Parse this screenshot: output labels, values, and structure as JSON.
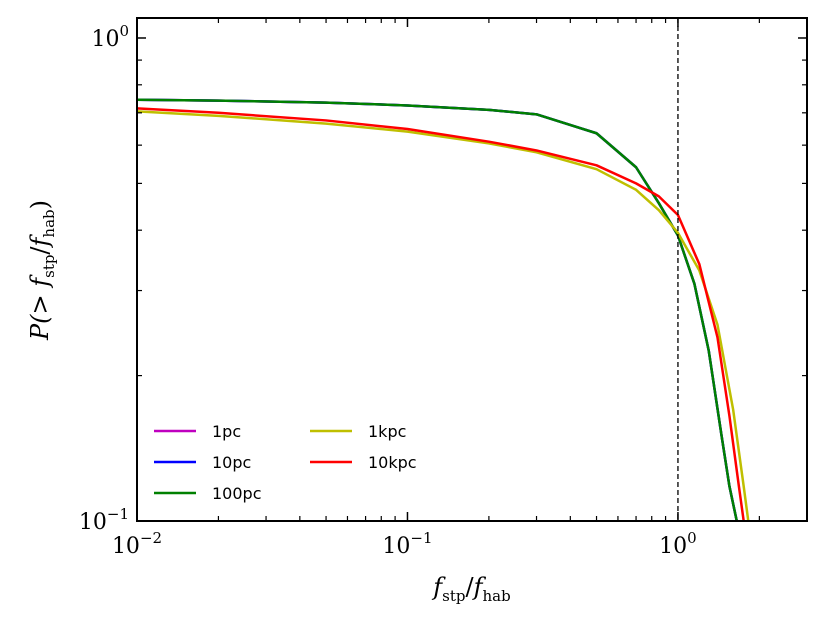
{
  "chart_data": {
    "type": "line",
    "title": "",
    "xlabel": {
      "main": "f",
      "sub": "stp",
      "sep": "/",
      "main2": "f",
      "sub2": "hab"
    },
    "ylabel": {
      "prefix": "P(> ",
      "main": "f",
      "sub": "stp",
      "sep": "/",
      "main2": "f",
      "sub2": "hab",
      "suffix": ")"
    },
    "xscale": "log",
    "yscale": "log",
    "xlim": [
      0.01,
      3.0
    ],
    "ylim": [
      0.1,
      1.1
    ],
    "xticks": [
      {
        "value": 0.01,
        "base": "10",
        "exp": "−2"
      },
      {
        "value": 0.1,
        "base": "10",
        "exp": "−1"
      },
      {
        "value": 1.0,
        "base": "10",
        "exp": "0"
      }
    ],
    "yticks": [
      {
        "value": 0.1,
        "base": "10",
        "exp": "−1"
      },
      {
        "value": 1.0,
        "base": "10",
        "exp": "0"
      }
    ],
    "vline": {
      "x": 1.0,
      "style": "dashed",
      "color": "#000000"
    },
    "legend_location": "lower-left",
    "series": [
      {
        "name": "1pc",
        "color": "#bf00bf",
        "x": [
          0.01,
          0.02,
          0.05,
          0.1,
          0.2,
          0.3,
          0.5,
          0.7,
          0.85,
          1.0,
          1.15,
          1.3,
          1.45,
          1.55,
          1.65
        ],
        "y": [
          0.745,
          0.742,
          0.735,
          0.725,
          0.71,
          0.695,
          0.635,
          0.54,
          0.455,
          0.39,
          0.31,
          0.225,
          0.15,
          0.118,
          0.1
        ]
      },
      {
        "name": "10pc",
        "color": "#0000ff",
        "x": [
          0.01,
          0.02,
          0.05,
          0.1,
          0.2,
          0.3,
          0.5,
          0.7,
          0.85,
          1.0,
          1.15,
          1.3,
          1.45,
          1.55,
          1.65
        ],
        "y": [
          0.745,
          0.742,
          0.735,
          0.725,
          0.71,
          0.695,
          0.635,
          0.54,
          0.455,
          0.39,
          0.31,
          0.225,
          0.15,
          0.118,
          0.1
        ]
      },
      {
        "name": "100pc",
        "color": "#008000",
        "x": [
          0.01,
          0.02,
          0.05,
          0.1,
          0.2,
          0.3,
          0.5,
          0.7,
          0.85,
          1.0,
          1.15,
          1.3,
          1.45,
          1.55,
          1.65
        ],
        "y": [
          0.745,
          0.742,
          0.735,
          0.725,
          0.71,
          0.695,
          0.635,
          0.54,
          0.455,
          0.39,
          0.31,
          0.225,
          0.15,
          0.118,
          0.1
        ]
      },
      {
        "name": "1kpc",
        "color": "#bfbf00",
        "x": [
          0.01,
          0.02,
          0.05,
          0.1,
          0.2,
          0.3,
          0.5,
          0.7,
          0.85,
          1.0,
          1.2,
          1.4,
          1.6,
          1.75,
          1.82
        ],
        "y": [
          0.705,
          0.69,
          0.665,
          0.64,
          0.605,
          0.58,
          0.535,
          0.485,
          0.44,
          0.395,
          0.33,
          0.255,
          0.17,
          0.118,
          0.1
        ]
      },
      {
        "name": "10kpc",
        "color": "#ff0000",
        "x": [
          0.01,
          0.02,
          0.05,
          0.1,
          0.2,
          0.3,
          0.5,
          0.7,
          0.85,
          1.0,
          1.2,
          1.4,
          1.55,
          1.68,
          1.75
        ],
        "y": [
          0.715,
          0.7,
          0.675,
          0.648,
          0.61,
          0.585,
          0.545,
          0.5,
          0.47,
          0.43,
          0.34,
          0.24,
          0.165,
          0.118,
          0.1
        ]
      }
    ]
  }
}
